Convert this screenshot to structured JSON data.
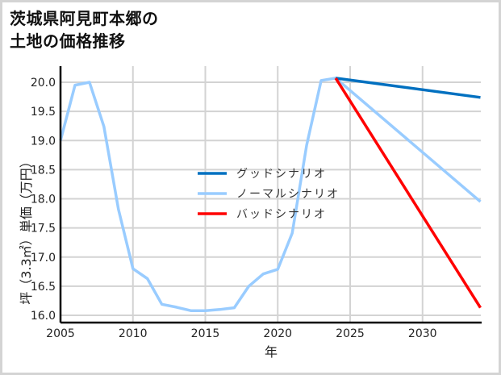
{
  "title": {
    "line1": "茨城県阿見町本郷の",
    "line2": "土地の価格推移"
  },
  "chart_data": {
    "type": "line",
    "title": "茨城県阿見町本郷の土地の価格推移",
    "xlabel": "年",
    "ylabel": "坪（3.3㎡）単価（万円）",
    "xlim": [
      2005,
      2034
    ],
    "ylim": [
      15.95,
      20.28
    ],
    "xticks": [
      2005,
      2010,
      2015,
      2020,
      2025,
      2030
    ],
    "yticks": [
      16.0,
      16.5,
      17.0,
      17.5,
      18.0,
      18.5,
      19.0,
      19.5,
      20.0
    ],
    "xtick_labels": [
      "2005",
      "2010",
      "2015",
      "2020",
      "2025",
      "2030"
    ],
    "ytick_labels": [
      "16.0",
      "16.5",
      "17.0",
      "17.5",
      "18.0",
      "18.5",
      "19.0",
      "19.5",
      "20.0"
    ],
    "grid": true,
    "legend_position": "center",
    "series": [
      {
        "name": "グッドシナリオ",
        "color": "#0070c0",
        "x": [
          2024,
          2034
        ],
        "values": [
          20.07,
          19.74
        ]
      },
      {
        "name": "ノーマルシナリオ",
        "color": "#99ccff",
        "x": [
          2005,
          2006,
          2007,
          2008,
          2009,
          2010,
          2011,
          2012,
          2013,
          2014,
          2015,
          2016,
          2017,
          2018,
          2019,
          2020,
          2021,
          2022,
          2023,
          2024,
          2034
        ],
        "values": [
          19.0,
          19.95,
          20.0,
          19.24,
          17.82,
          16.8,
          16.63,
          16.19,
          16.14,
          16.08,
          16.08,
          16.1,
          16.13,
          16.5,
          16.71,
          16.79,
          17.41,
          18.92,
          20.03,
          20.07,
          17.95
        ]
      },
      {
        "name": "バッドシナリオ",
        "color": "#ff0000",
        "x": [
          2024,
          2034
        ],
        "values": [
          20.07,
          16.13
        ]
      }
    ]
  },
  "colors": {
    "grid": "#d3d3d3",
    "axis": "#000000",
    "frame": "#d4d4d4"
  }
}
